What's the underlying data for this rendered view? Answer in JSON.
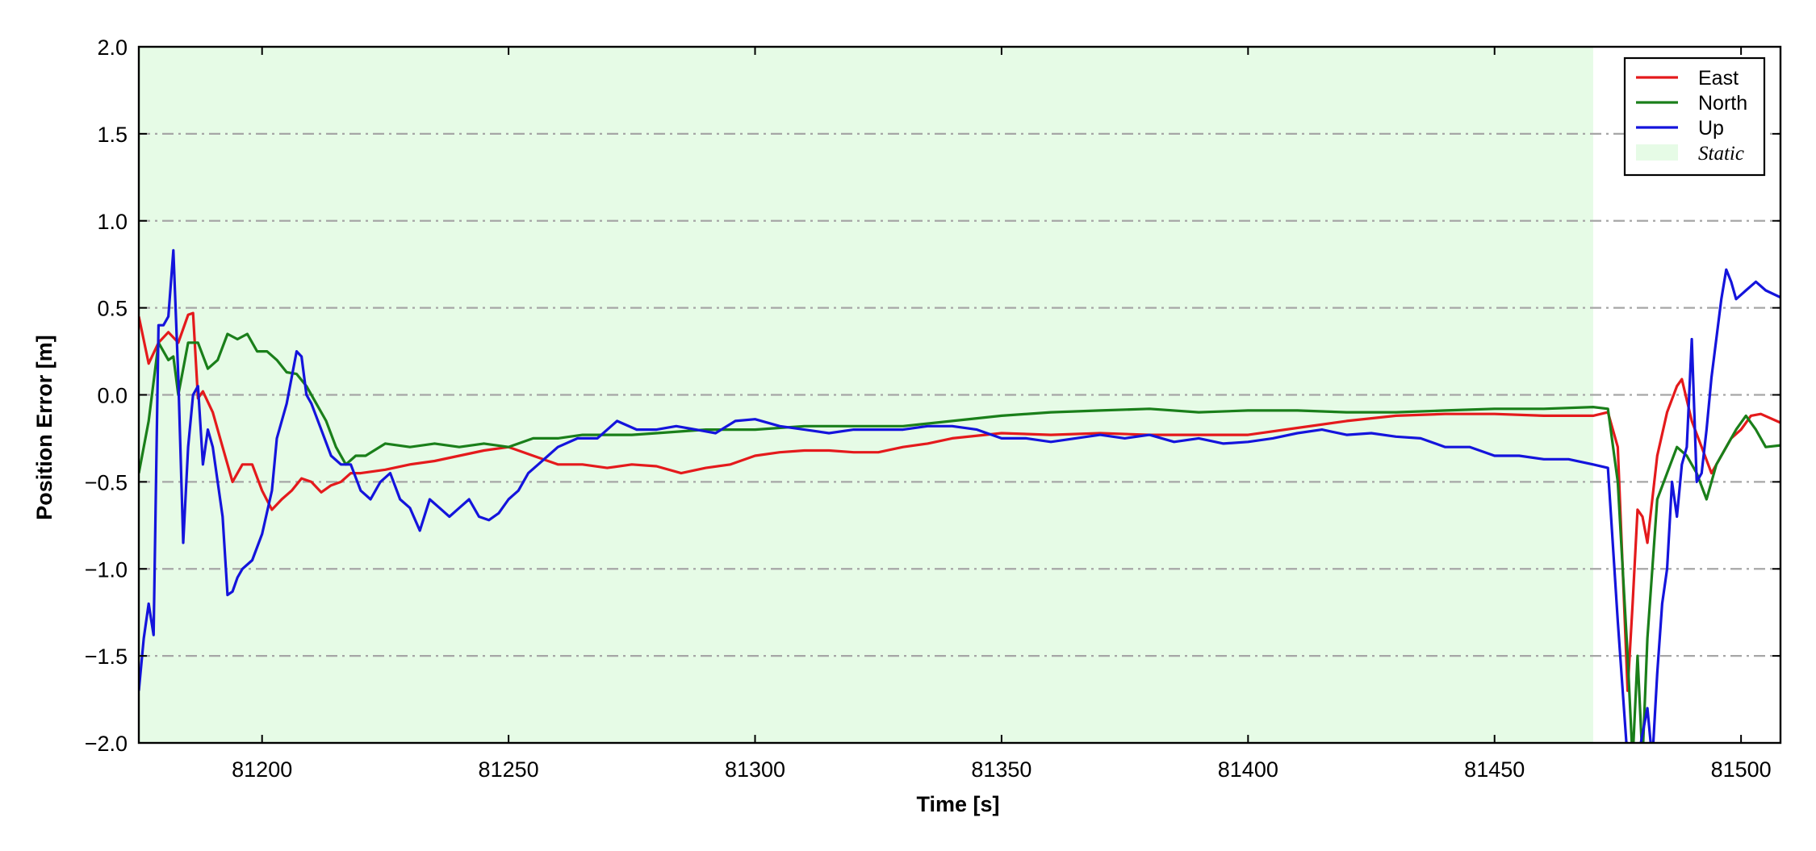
{
  "chart_data": {
    "type": "line",
    "title": "",
    "xlabel": "Time [s]",
    "ylabel": "Position Error [m]",
    "xlim": [
      81175,
      81508
    ],
    "ylim": [
      -2.0,
      2.0
    ],
    "x_ticks": [
      81200,
      81250,
      81300,
      81350,
      81400,
      81450,
      81500
    ],
    "y_ticks": [
      -2.0,
      -1.5,
      -1.0,
      -0.5,
      0.0,
      0.5,
      1.0,
      1.5,
      2.0
    ],
    "x_tick_labels": [
      "81200",
      "81250",
      "81300",
      "81350",
      "81400",
      "81450",
      "81500"
    ],
    "y_tick_labels": [
      "−2.0",
      "−1.5",
      "−1.0",
      "−0.5",
      "0.0",
      "0.5",
      "1.0",
      "1.5",
      "2.0"
    ],
    "grid": "horizontal dash-dot",
    "legend_position": "top-right",
    "shaded_region": {
      "name": "Static",
      "x_start": 81175,
      "x_end": 81470,
      "color": "#e6fbe6"
    },
    "series": [
      {
        "name": "East",
        "color": "#e41a1c",
        "points": [
          [
            81175,
            0.45
          ],
          [
            81177,
            0.18
          ],
          [
            81179,
            0.3
          ],
          [
            81181,
            0.36
          ],
          [
            81183,
            0.3
          ],
          [
            81185,
            0.46
          ],
          [
            81186,
            0.47
          ],
          [
            81187,
            -0.02
          ],
          [
            81188,
            0.02
          ],
          [
            81190,
            -0.1
          ],
          [
            81192,
            -0.3
          ],
          [
            81194,
            -0.5
          ],
          [
            81196,
            -0.4
          ],
          [
            81198,
            -0.4
          ],
          [
            81200,
            -0.55
          ],
          [
            81202,
            -0.66
          ],
          [
            81204,
            -0.6
          ],
          [
            81206,
            -0.55
          ],
          [
            81208,
            -0.48
          ],
          [
            81210,
            -0.5
          ],
          [
            81212,
            -0.56
          ],
          [
            81214,
            -0.52
          ],
          [
            81216,
            -0.5
          ],
          [
            81218,
            -0.45
          ],
          [
            81220,
            -0.45
          ],
          [
            81225,
            -0.43
          ],
          [
            81230,
            -0.4
          ],
          [
            81235,
            -0.38
          ],
          [
            81240,
            -0.35
          ],
          [
            81245,
            -0.32
          ],
          [
            81250,
            -0.3
          ],
          [
            81255,
            -0.35
          ],
          [
            81260,
            -0.4
          ],
          [
            81265,
            -0.4
          ],
          [
            81270,
            -0.42
          ],
          [
            81275,
            -0.4
          ],
          [
            81280,
            -0.41
          ],
          [
            81285,
            -0.45
          ],
          [
            81290,
            -0.42
          ],
          [
            81295,
            -0.4
          ],
          [
            81300,
            -0.35
          ],
          [
            81305,
            -0.33
          ],
          [
            81310,
            -0.32
          ],
          [
            81315,
            -0.32
          ],
          [
            81320,
            -0.33
          ],
          [
            81325,
            -0.33
          ],
          [
            81330,
            -0.3
          ],
          [
            81335,
            -0.28
          ],
          [
            81340,
            -0.25
          ],
          [
            81350,
            -0.22
          ],
          [
            81360,
            -0.23
          ],
          [
            81370,
            -0.22
          ],
          [
            81380,
            -0.23
          ],
          [
            81390,
            -0.23
          ],
          [
            81400,
            -0.23
          ],
          [
            81410,
            -0.19
          ],
          [
            81420,
            -0.15
          ],
          [
            81430,
            -0.12
          ],
          [
            81440,
            -0.11
          ],
          [
            81450,
            -0.11
          ],
          [
            81460,
            -0.12
          ],
          [
            81470,
            -0.12
          ],
          [
            81473,
            -0.1
          ],
          [
            81475,
            -0.3
          ],
          [
            81477,
            -1.7
          ],
          [
            81478,
            -1.2
          ],
          [
            81479,
            -0.66
          ],
          [
            81480,
            -0.7
          ],
          [
            81481,
            -0.85
          ],
          [
            81483,
            -0.35
          ],
          [
            81485,
            -0.1
          ],
          [
            81487,
            0.05
          ],
          [
            81488,
            0.09
          ],
          [
            81490,
            -0.15
          ],
          [
            81492,
            -0.3
          ],
          [
            81494,
            -0.45
          ],
          [
            81496,
            -0.35
          ],
          [
            81498,
            -0.25
          ],
          [
            81500,
            -0.2
          ],
          [
            81502,
            -0.12
          ],
          [
            81504,
            -0.11
          ],
          [
            81508,
            -0.16
          ]
        ]
      },
      {
        "name": "North",
        "color": "#1a7f1a",
        "points": [
          [
            81175,
            -0.45
          ],
          [
            81177,
            -0.15
          ],
          [
            81179,
            0.3
          ],
          [
            81181,
            0.2
          ],
          [
            81182,
            0.22
          ],
          [
            81183,
            0.0
          ],
          [
            81185,
            0.3
          ],
          [
            81187,
            0.3
          ],
          [
            81189,
            0.15
          ],
          [
            81191,
            0.2
          ],
          [
            81193,
            0.35
          ],
          [
            81195,
            0.32
          ],
          [
            81197,
            0.35
          ],
          [
            81199,
            0.25
          ],
          [
            81201,
            0.25
          ],
          [
            81203,
            0.2
          ],
          [
            81205,
            0.13
          ],
          [
            81207,
            0.12
          ],
          [
            81209,
            0.05
          ],
          [
            81211,
            -0.05
          ],
          [
            81213,
            -0.15
          ],
          [
            81215,
            -0.3
          ],
          [
            81217,
            -0.4
          ],
          [
            81219,
            -0.35
          ],
          [
            81221,
            -0.35
          ],
          [
            81225,
            -0.28
          ],
          [
            81230,
            -0.3
          ],
          [
            81235,
            -0.28
          ],
          [
            81240,
            -0.3
          ],
          [
            81245,
            -0.28
          ],
          [
            81250,
            -0.3
          ],
          [
            81255,
            -0.25
          ],
          [
            81260,
            -0.25
          ],
          [
            81265,
            -0.23
          ],
          [
            81270,
            -0.23
          ],
          [
            81275,
            -0.23
          ],
          [
            81280,
            -0.22
          ],
          [
            81290,
            -0.2
          ],
          [
            81300,
            -0.2
          ],
          [
            81310,
            -0.18
          ],
          [
            81320,
            -0.18
          ],
          [
            81330,
            -0.18
          ],
          [
            81340,
            -0.15
          ],
          [
            81350,
            -0.12
          ],
          [
            81360,
            -0.1
          ],
          [
            81370,
            -0.09
          ],
          [
            81380,
            -0.08
          ],
          [
            81390,
            -0.1
          ],
          [
            81400,
            -0.09
          ],
          [
            81410,
            -0.09
          ],
          [
            81420,
            -0.1
          ],
          [
            81430,
            -0.1
          ],
          [
            81440,
            -0.09
          ],
          [
            81450,
            -0.08
          ],
          [
            81460,
            -0.08
          ],
          [
            81470,
            -0.07
          ],
          [
            81473,
            -0.08
          ],
          [
            81475,
            -0.5
          ],
          [
            81477,
            -1.5
          ],
          [
            81478,
            -2.1
          ],
          [
            81479,
            -1.5
          ],
          [
            81480,
            -2.1
          ],
          [
            81481,
            -1.4
          ],
          [
            81483,
            -0.6
          ],
          [
            81485,
            -0.45
          ],
          [
            81487,
            -0.3
          ],
          [
            81489,
            -0.35
          ],
          [
            81491,
            -0.45
          ],
          [
            81493,
            -0.6
          ],
          [
            81495,
            -0.4
          ],
          [
            81497,
            -0.3
          ],
          [
            81499,
            -0.2
          ],
          [
            81501,
            -0.12
          ],
          [
            81503,
            -0.2
          ],
          [
            81505,
            -0.3
          ],
          [
            81508,
            -0.29
          ]
        ]
      },
      {
        "name": "Up",
        "color": "#1414dc",
        "points": [
          [
            81175,
            -1.7
          ],
          [
            81176,
            -1.4
          ],
          [
            81177,
            -1.2
          ],
          [
            81178,
            -1.38
          ],
          [
            81179,
            0.4
          ],
          [
            81180,
            0.4
          ],
          [
            81181,
            0.45
          ],
          [
            81182,
            0.83
          ],
          [
            81183,
            0.1
          ],
          [
            81184,
            -0.85
          ],
          [
            81185,
            -0.3
          ],
          [
            81186,
            0.0
          ],
          [
            81187,
            0.05
          ],
          [
            81188,
            -0.4
          ],
          [
            81189,
            -0.2
          ],
          [
            81190,
            -0.3
          ],
          [
            81191,
            -0.5
          ],
          [
            81192,
            -0.7
          ],
          [
            81193,
            -1.15
          ],
          [
            81194,
            -1.13
          ],
          [
            81195,
            -1.05
          ],
          [
            81196,
            -1.0
          ],
          [
            81198,
            -0.95
          ],
          [
            81200,
            -0.8
          ],
          [
            81202,
            -0.55
          ],
          [
            81203,
            -0.25
          ],
          [
            81205,
            -0.05
          ],
          [
            81207,
            0.25
          ],
          [
            81208,
            0.22
          ],
          [
            81209,
            0.0
          ],
          [
            81210,
            -0.05
          ],
          [
            81212,
            -0.2
          ],
          [
            81214,
            -0.35
          ],
          [
            81216,
            -0.4
          ],
          [
            81218,
            -0.4
          ],
          [
            81220,
            -0.55
          ],
          [
            81222,
            -0.6
          ],
          [
            81224,
            -0.5
          ],
          [
            81226,
            -0.45
          ],
          [
            81228,
            -0.6
          ],
          [
            81230,
            -0.65
          ],
          [
            81232,
            -0.78
          ],
          [
            81234,
            -0.6
          ],
          [
            81236,
            -0.65
          ],
          [
            81238,
            -0.7
          ],
          [
            81240,
            -0.65
          ],
          [
            81242,
            -0.6
          ],
          [
            81244,
            -0.7
          ],
          [
            81246,
            -0.72
          ],
          [
            81248,
            -0.68
          ],
          [
            81250,
            -0.6
          ],
          [
            81252,
            -0.55
          ],
          [
            81254,
            -0.45
          ],
          [
            81256,
            -0.4
          ],
          [
            81258,
            -0.35
          ],
          [
            81260,
            -0.3
          ],
          [
            81264,
            -0.25
          ],
          [
            81268,
            -0.25
          ],
          [
            81272,
            -0.15
          ],
          [
            81276,
            -0.2
          ],
          [
            81280,
            -0.2
          ],
          [
            81284,
            -0.18
          ],
          [
            81288,
            -0.2
          ],
          [
            81292,
            -0.22
          ],
          [
            81296,
            -0.15
          ],
          [
            81300,
            -0.14
          ],
          [
            81305,
            -0.18
          ],
          [
            81310,
            -0.2
          ],
          [
            81315,
            -0.22
          ],
          [
            81320,
            -0.2
          ],
          [
            81325,
            -0.2
          ],
          [
            81330,
            -0.2
          ],
          [
            81335,
            -0.18
          ],
          [
            81340,
            -0.18
          ],
          [
            81345,
            -0.2
          ],
          [
            81350,
            -0.25
          ],
          [
            81355,
            -0.25
          ],
          [
            81360,
            -0.27
          ],
          [
            81365,
            -0.25
          ],
          [
            81370,
            -0.23
          ],
          [
            81375,
            -0.25
          ],
          [
            81380,
            -0.23
          ],
          [
            81385,
            -0.27
          ],
          [
            81390,
            -0.25
          ],
          [
            81395,
            -0.28
          ],
          [
            81400,
            -0.27
          ],
          [
            81405,
            -0.25
          ],
          [
            81410,
            -0.22
          ],
          [
            81415,
            -0.2
          ],
          [
            81420,
            -0.23
          ],
          [
            81425,
            -0.22
          ],
          [
            81430,
            -0.24
          ],
          [
            81435,
            -0.25
          ],
          [
            81440,
            -0.3
          ],
          [
            81445,
            -0.3
          ],
          [
            81450,
            -0.35
          ],
          [
            81455,
            -0.35
          ],
          [
            81460,
            -0.37
          ],
          [
            81465,
            -0.37
          ],
          [
            81470,
            -0.4
          ],
          [
            81473,
            -0.42
          ],
          [
            81475,
            -1.3
          ],
          [
            81477,
            -2.1
          ],
          [
            81479,
            -2.1
          ],
          [
            81481,
            -1.8
          ],
          [
            81482,
            -2.1
          ],
          [
            81483,
            -1.6
          ],
          [
            81484,
            -1.2
          ],
          [
            81485,
            -1.0
          ],
          [
            81486,
            -0.5
          ],
          [
            81487,
            -0.7
          ],
          [
            81488,
            -0.4
          ],
          [
            81489,
            -0.3
          ],
          [
            81490,
            0.32
          ],
          [
            81491,
            -0.5
          ],
          [
            81492,
            -0.45
          ],
          [
            81493,
            -0.2
          ],
          [
            81494,
            0.1
          ],
          [
            81496,
            0.55
          ],
          [
            81497,
            0.72
          ],
          [
            81498,
            0.65
          ],
          [
            81499,
            0.55
          ],
          [
            81501,
            0.6
          ],
          [
            81503,
            0.65
          ],
          [
            81505,
            0.6
          ],
          [
            81508,
            0.56
          ]
        ]
      }
    ]
  }
}
